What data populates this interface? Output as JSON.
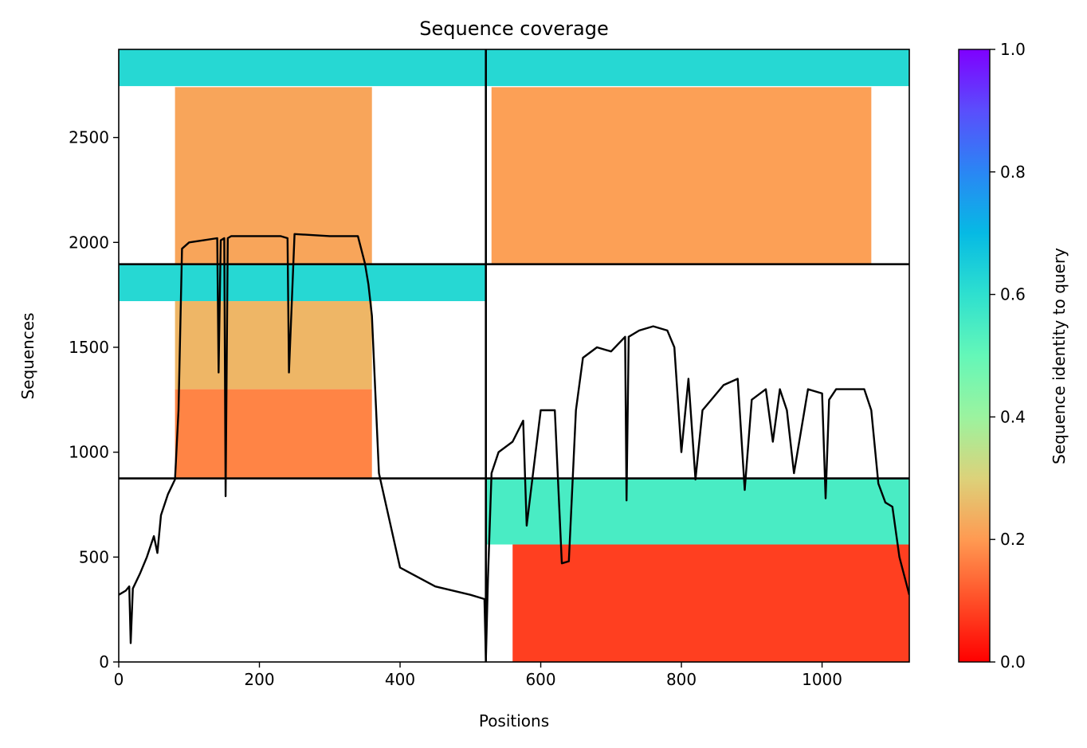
{
  "chart_data": {
    "type": "heatmap",
    "title": "Sequence coverage",
    "xlabel": "Positions",
    "ylabel": "Sequences",
    "xlim": [
      0,
      1124
    ],
    "ylim": [
      0,
      2920
    ],
    "xticks": [
      0,
      200,
      400,
      600,
      800,
      1000
    ],
    "yticks": [
      0,
      500,
      1000,
      1500,
      2000,
      2500
    ],
    "grid": false,
    "colorbar": {
      "label": "Sequence identity to query",
      "range": [
        0.0,
        1.0
      ],
      "ticks": [
        "0.0",
        "0.2",
        "0.4",
        "0.6",
        "0.8",
        "1.0"
      ],
      "colormap": "rainbow_r"
    },
    "segment_boundaries": {
      "vertical_x": [
        522
      ],
      "horizontal_y": [
        875,
        1896
      ]
    },
    "coverage_blocks": [
      {
        "x0": 0,
        "x1": 522,
        "y0": 2745,
        "y1": 2920,
        "identity": 0.62
      },
      {
        "x0": 80,
        "x1": 360,
        "y0": 1896,
        "y1": 2740,
        "identity": 0.22
      },
      {
        "x0": 0,
        "x1": 522,
        "y0": 1720,
        "y1": 1896,
        "identity": 0.62
      },
      {
        "x0": 80,
        "x1": 360,
        "y0": 1300,
        "y1": 1720,
        "identity": 0.25
      },
      {
        "x0": 80,
        "x1": 360,
        "y0": 875,
        "y1": 1300,
        "identity": 0.17
      },
      {
        "x0": 522,
        "x1": 1124,
        "y0": 2745,
        "y1": 2920,
        "identity": 0.62
      },
      {
        "x0": 530,
        "x1": 1070,
        "y0": 1896,
        "y1": 2740,
        "identity": 0.21
      },
      {
        "x0": 522,
        "x1": 1124,
        "y0": 560,
        "y1": 875,
        "identity": 0.55
      },
      {
        "x0": 560,
        "x1": 1124,
        "y0": 0,
        "y1": 560,
        "identity": 0.08
      }
    ],
    "coverage_line": {
      "x": [
        0,
        10,
        15,
        17,
        20,
        30,
        40,
        50,
        55,
        60,
        70,
        80,
        85,
        90,
        100,
        120,
        140,
        142,
        145,
        150,
        152,
        155,
        160,
        200,
        230,
        240,
        242,
        250,
        300,
        340,
        350,
        355,
        360,
        370,
        400,
        450,
        500,
        520,
        522,
        525,
        530,
        540,
        560,
        575,
        580,
        600,
        620,
        630,
        640,
        650,
        660,
        680,
        700,
        720,
        722,
        725,
        740,
        760,
        780,
        790,
        800,
        810,
        820,
        830,
        860,
        880,
        890,
        900,
        920,
        930,
        940,
        950,
        960,
        980,
        1000,
        1005,
        1010,
        1020,
        1040,
        1060,
        1070,
        1080,
        1090,
        1100,
        1110,
        1124
      ],
      "y": [
        320,
        340,
        360,
        90,
        350,
        420,
        500,
        600,
        520,
        700,
        800,
        870,
        1200,
        1970,
        2000,
        2010,
        2020,
        1380,
        2010,
        2020,
        790,
        2020,
        2030,
        2030,
        2030,
        2020,
        1380,
        2040,
        2030,
        2030,
        1900,
        1800,
        1650,
        900,
        450,
        360,
        320,
        300,
        10,
        400,
        900,
        1000,
        1050,
        1150,
        650,
        1200,
        1200,
        470,
        480,
        1200,
        1450,
        1500,
        1480,
        1550,
        770,
        1550,
        1580,
        1600,
        1580,
        1500,
        1000,
        1350,
        870,
        1200,
        1320,
        1350,
        820,
        1250,
        1300,
        1050,
        1300,
        1200,
        900,
        1300,
        1280,
        780,
        1250,
        1300,
        1300,
        1300,
        1200,
        850,
        760,
        740,
        500,
        320
      ]
    }
  }
}
